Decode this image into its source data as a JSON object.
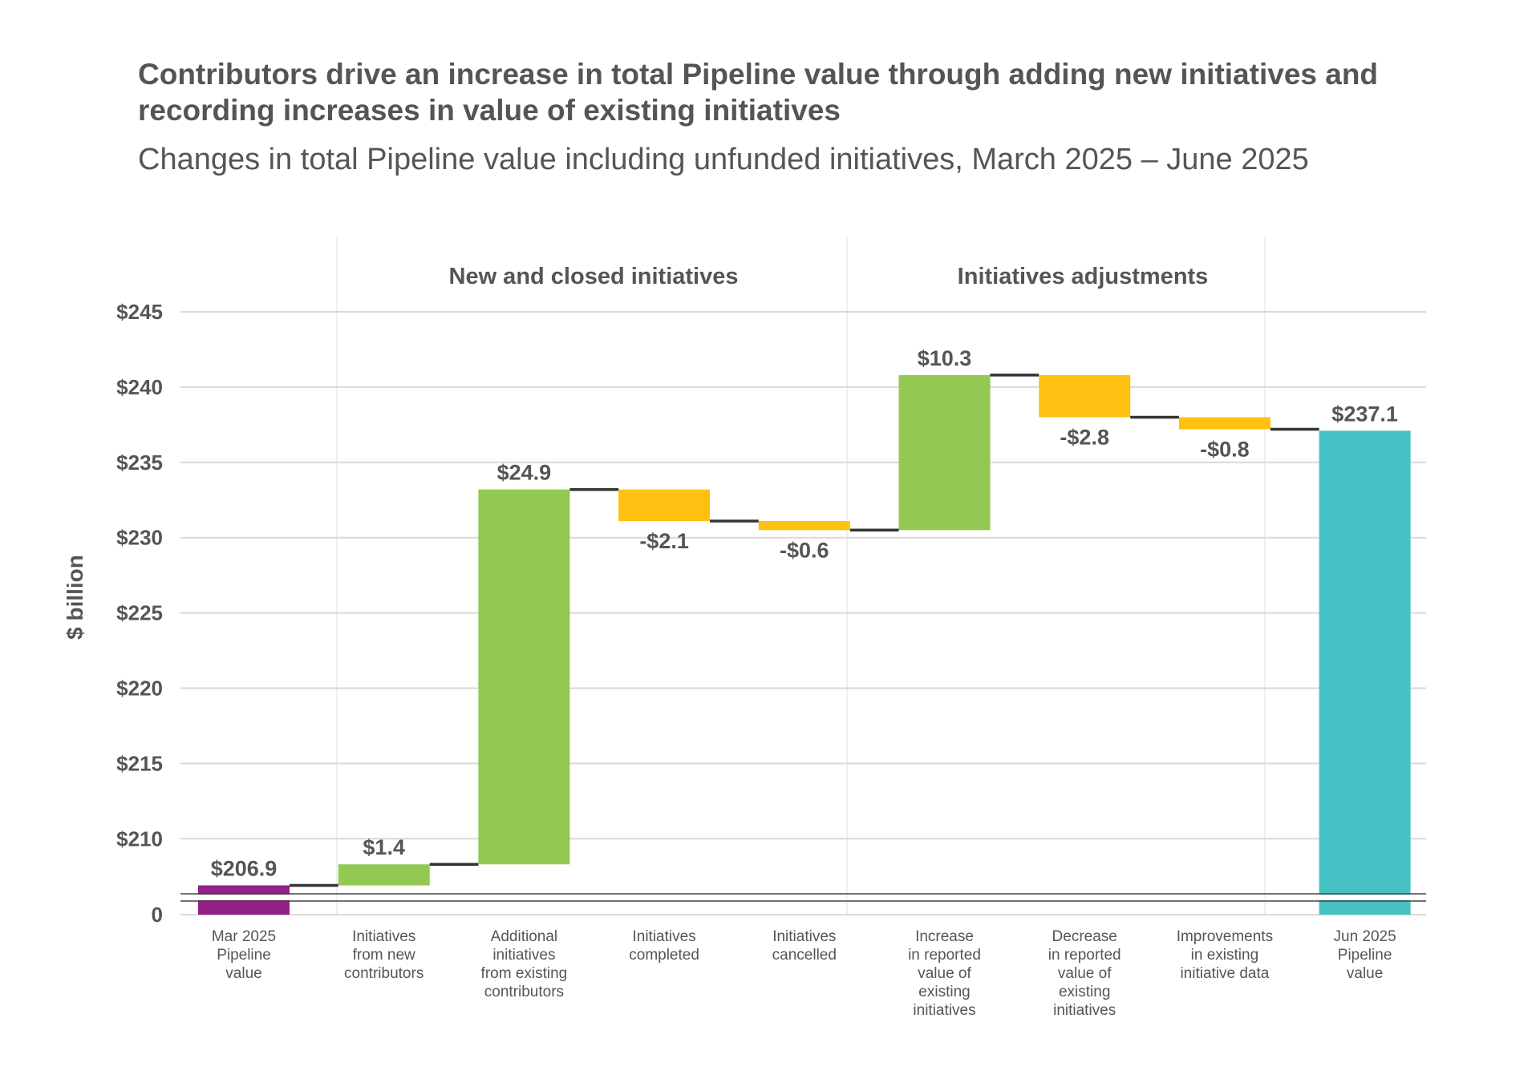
{
  "chart_data": {
    "type": "waterfall",
    "title": "Contributors drive an increase in total Pipeline value through adding new initiatives and recording increases in value of existing initiatives",
    "subtitle": "Changes in total Pipeline value including unfunded initiatives, March 2025 – June 2025",
    "ylabel": "$ billion",
    "ylim": [
      205,
      245
    ],
    "axis_break": true,
    "yticks": [
      {
        "value": 245,
        "label": "$245"
      },
      {
        "value": 240,
        "label": "$240"
      },
      {
        "value": 235,
        "label": "$235"
      },
      {
        "value": 230,
        "label": "$230"
      },
      {
        "value": 225,
        "label": "$225"
      },
      {
        "value": 220,
        "label": "$220"
      },
      {
        "value": 215,
        "label": "$215"
      },
      {
        "value": 210,
        "label": "$210"
      },
      {
        "value": 0,
        "label": "0"
      }
    ],
    "grid": true,
    "groups": [
      {
        "label": "New and closed initiatives",
        "from": 1,
        "to": 4
      },
      {
        "label": "Initiatives adjustments",
        "from": 5,
        "to": 7
      }
    ],
    "categories": [
      [
        "Mar 2025",
        "Pipeline",
        "value"
      ],
      [
        "Initiatives",
        "from new",
        "contributors"
      ],
      [
        "Additional",
        "initiatives",
        "from existing",
        "contributors"
      ],
      [
        "Initiatives",
        "completed"
      ],
      [
        "Initiatives",
        "cancelled"
      ],
      [
        "Increase",
        "in reported",
        "value of",
        "existing",
        "initiatives"
      ],
      [
        "Decrease",
        "in reported",
        "value of",
        "existing",
        "initiatives"
      ],
      [
        "Improvements",
        "in existing",
        "initiative data"
      ],
      [
        "Jun 2025",
        "Pipeline",
        "value"
      ]
    ],
    "values": [
      206.9,
      1.4,
      24.9,
      -2.1,
      -0.6,
      10.3,
      -2.8,
      -0.8,
      237.1
    ],
    "kinds": [
      "total",
      "delta",
      "delta",
      "delta",
      "delta",
      "delta",
      "delta",
      "delta",
      "total"
    ],
    "data_labels": [
      "$206.9",
      "$1.4",
      "$24.9",
      "-$2.1",
      "-$0.6",
      "$10.3",
      "-$2.8",
      "-$0.8",
      "$237.1"
    ],
    "colors": {
      "start_total": "#912087",
      "increase": "#93c852",
      "decrease": "#ffc012",
      "end_total": "#46c1c4",
      "connector": "#333333",
      "grid": "#d9d9d9",
      "text": "#555555"
    }
  }
}
